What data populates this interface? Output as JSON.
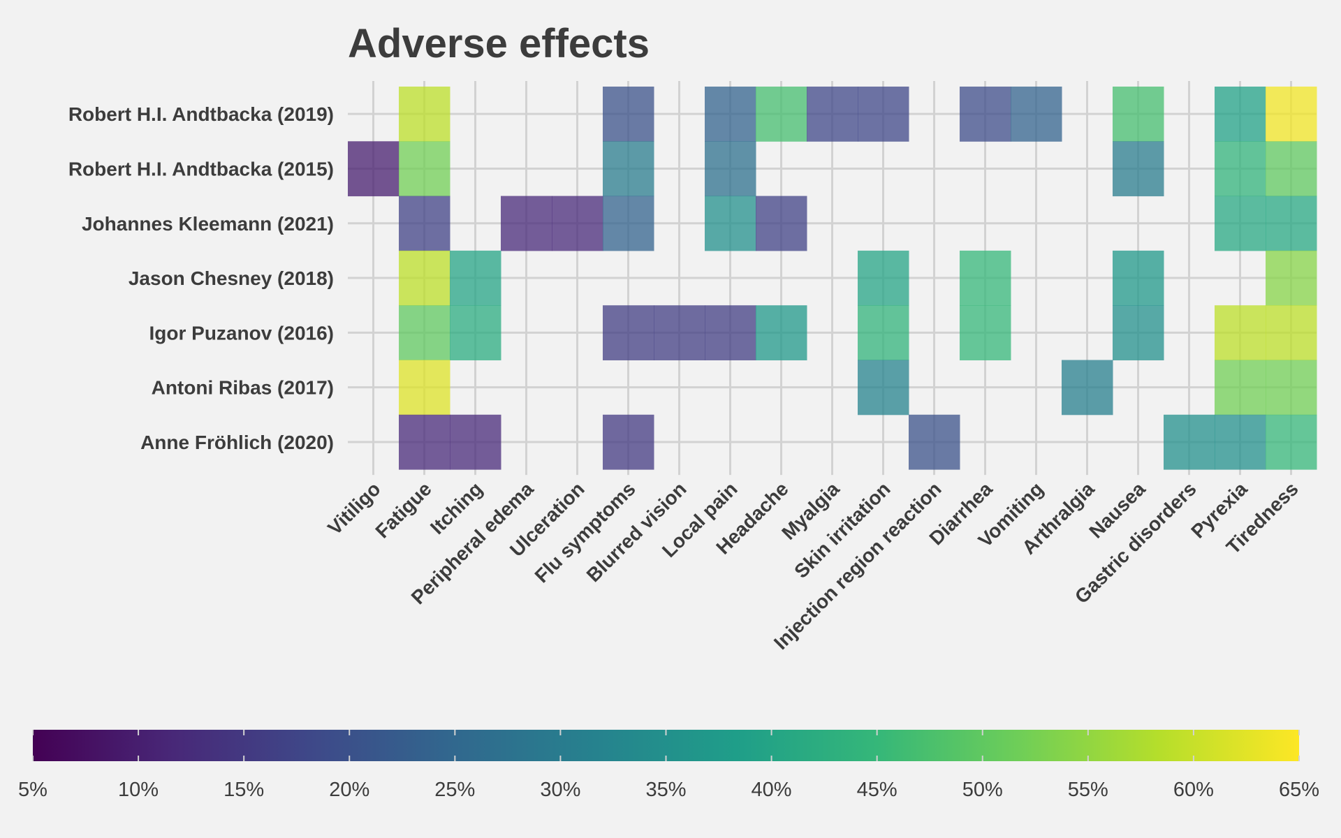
{
  "chart_data": {
    "type": "heatmap",
    "title": "Adverse effects",
    "xlabel": "",
    "ylabel": "",
    "rows": [
      "Robert H.I. Andtbacka (2019)",
      "Robert H.I. Andtbacka (2015)",
      "Johannes Kleemann (2021)",
      "Jason Chesney (2018)",
      "Igor Puzanov (2016)",
      "Antoni Ribas (2017)",
      "Anne Fröhlich (2020)"
    ],
    "columns": [
      "Vitiligo",
      "Fatigue",
      "Itching",
      "Peripheral edema",
      "Ulceration",
      "Flu symptoms",
      "Blurred vision",
      "Local pain",
      "Headache",
      "Myalgia",
      "Skin irritation",
      "Injection region reaction",
      "Diarrhea",
      "Vomiting",
      "Arthralgia",
      "Nausea",
      "Gastric disorders",
      "Pyrexia",
      "Tiredness"
    ],
    "values_percent": [
      [
        null,
        59,
        null,
        null,
        null,
        20,
        null,
        24,
        47,
        18,
        18,
        null,
        19,
        24,
        null,
        47,
        null,
        39,
        64
      ],
      [
        10,
        52,
        null,
        null,
        null,
        30,
        null,
        27,
        null,
        null,
        null,
        null,
        null,
        null,
        null,
        30,
        null,
        44,
        50
      ],
      [
        null,
        17,
        null,
        12,
        12,
        24,
        null,
        35,
        17,
        null,
        null,
        null,
        null,
        null,
        null,
        null,
        null,
        41,
        41
      ],
      [
        null,
        59,
        40,
        null,
        null,
        null,
        null,
        null,
        null,
        null,
        40,
        null,
        45,
        null,
        null,
        37,
        null,
        null,
        54
      ],
      [
        null,
        50,
        42,
        null,
        null,
        16,
        16,
        16,
        37,
        null,
        44,
        null,
        45,
        null,
        null,
        35,
        null,
        59,
        59
      ],
      [
        null,
        62,
        null,
        null,
        null,
        null,
        null,
        null,
        null,
        null,
        32,
        null,
        null,
        null,
        31,
        null,
        null,
        52,
        52
      ],
      [
        null,
        12,
        12,
        null,
        null,
        15,
        null,
        null,
        null,
        null,
        null,
        20,
        null,
        null,
        null,
        null,
        35,
        35,
        45
      ]
    ],
    "colorbar": {
      "min": 5,
      "max": 65,
      "ticks": [
        5,
        10,
        15,
        20,
        25,
        30,
        35,
        40,
        45,
        50,
        55,
        60,
        65
      ],
      "tick_labels": [
        "5%",
        "10%",
        "15%",
        "20%",
        "25%",
        "30%",
        "35%",
        "40%",
        "45%",
        "50%",
        "55%",
        "60%",
        "65%"
      ],
      "colormap": "viridis",
      "placement": "bottom"
    },
    "grid": true
  },
  "colors": {
    "background": "#f2f2f2",
    "grid": "#d2d2d2",
    "text": "#3c3c3c",
    "viridis": [
      "#440154",
      "#482878",
      "#3e4989",
      "#31688e",
      "#26828e",
      "#1f9e89",
      "#35b779",
      "#6ece58",
      "#b5de2b",
      "#fde725"
    ]
  }
}
